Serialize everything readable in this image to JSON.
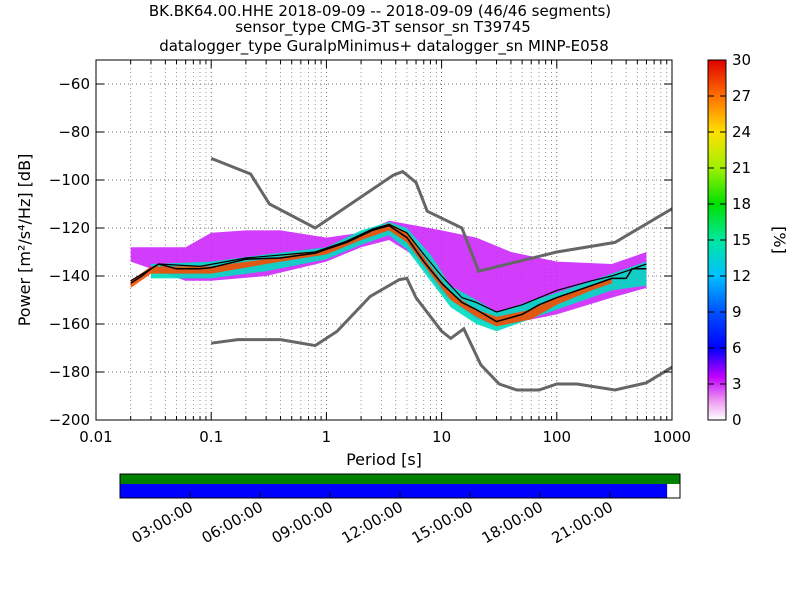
{
  "title_lines": [
    "BK.BK64.00.HHE   2018-09-09 -- 2018-09-09  (46/46 segments)",
    "sensor_type CMG-3T sensor_sn T39745",
    "datalogger_type GuralpMinimus+ datalogger_sn MINP-E058"
  ],
  "colors": {
    "noise_model": "#666666",
    "mode_line": "#000000",
    "coverage_green": "#008000",
    "coverage_blue": "#0000ff",
    "grid": "#000000"
  },
  "chart_data": {
    "type": "heatmap",
    "title": "BK.BK64.00.HHE   2018-09-09 -- 2018-09-09  (46/46 segments)",
    "xlabel": "Period [s]",
    "ylabel": "Power [m²/s⁴/Hz] [dB]",
    "xscale": "log",
    "xlim": [
      0.01,
      1000
    ],
    "ylim": [
      -200,
      -50
    ],
    "x_ticks": [
      0.01,
      0.1,
      1,
      10,
      100,
      1000
    ],
    "x_tick_labels": [
      "0.01",
      "0.1",
      "1",
      "10",
      "100",
      "1000"
    ],
    "y_ticks": [
      -200,
      -180,
      -160,
      -140,
      -120,
      -100,
      -80,
      -60
    ],
    "y_tick_labels": [
      "−200",
      "−180",
      "−160",
      "−140",
      "−120",
      "−100",
      "−80",
      "−60"
    ],
    "grid": true,
    "colorbar": {
      "label": "[%]",
      "min": 0,
      "max": 30,
      "ticks": [
        "0",
        "3",
        "6",
        "9",
        "12",
        "15",
        "18",
        "21",
        "24",
        "27",
        "30"
      ]
    },
    "nhnm": [
      [
        0.1,
        -91
      ],
      [
        0.22,
        -97.5
      ],
      [
        0.32,
        -110
      ],
      [
        0.8,
        -120
      ],
      [
        3.8,
        -98
      ],
      [
        4.6,
        -96.5
      ],
      [
        6,
        -101
      ],
      [
        7.5,
        -113
      ],
      [
        15,
        -120
      ],
      [
        21,
        -138
      ],
      [
        100,
        -130
      ],
      [
        320,
        -126
      ],
      [
        1000,
        -112
      ]
    ],
    "nlnm": [
      [
        0.1,
        -168
      ],
      [
        0.17,
        -166.5
      ],
      [
        0.4,
        -166.5
      ],
      [
        0.8,
        -169
      ],
      [
        1.24,
        -163
      ],
      [
        2.4,
        -148.5
      ],
      [
        4.3,
        -141.5
      ],
      [
        5,
        -141
      ],
      [
        6,
        -149
      ],
      [
        10,
        -163
      ],
      [
        12,
        -166
      ],
      [
        15.6,
        -162
      ],
      [
        21.9,
        -177
      ],
      [
        31.6,
        -185
      ],
      [
        45,
        -187.5
      ],
      [
        70,
        -187.5
      ],
      [
        100,
        -185
      ],
      [
        150,
        -185
      ],
      [
        320,
        -187.5
      ],
      [
        600,
        -184.5
      ],
      [
        1000,
        -178
      ]
    ],
    "mode": [
      [
        0.02,
        -143
      ],
      [
        0.025,
        -140
      ],
      [
        0.03,
        -137
      ],
      [
        0.035,
        -135
      ],
      [
        0.05,
        -137
      ],
      [
        0.08,
        -137
      ],
      [
        0.1,
        -136.5
      ],
      [
        0.2,
        -133
      ],
      [
        0.4,
        -132.5
      ],
      [
        0.8,
        -130.5
      ],
      [
        1.5,
        -126
      ],
      [
        2.5,
        -121
      ],
      [
        3.5,
        -119
      ],
      [
        5,
        -124
      ],
      [
        7,
        -134
      ],
      [
        10,
        -143
      ],
      [
        15,
        -151
      ],
      [
        20,
        -154
      ],
      [
        30,
        -159
      ],
      [
        50,
        -156
      ],
      [
        70,
        -152
      ],
      [
        100,
        -149
      ],
      [
        200,
        -144
      ],
      [
        300,
        -141
      ],
      [
        400,
        -141
      ],
      [
        450,
        -137
      ],
      [
        600,
        -137
      ]
    ],
    "mean": [
      [
        0.02,
        -142
      ],
      [
        0.035,
        -135
      ],
      [
        0.08,
        -136
      ],
      [
        0.2,
        -132.5
      ],
      [
        0.8,
        -130
      ],
      [
        1.5,
        -125.5
      ],
      [
        2.5,
        -120.5
      ],
      [
        3.5,
        -118.5
      ],
      [
        5,
        -122
      ],
      [
        7,
        -131
      ],
      [
        10,
        -140
      ],
      [
        15,
        -149
      ],
      [
        20,
        -151
      ],
      [
        30,
        -155
      ],
      [
        50,
        -152
      ],
      [
        100,
        -146
      ],
      [
        200,
        -142
      ],
      [
        300,
        -140
      ],
      [
        400,
        -138
      ],
      [
        600,
        -135
      ]
    ],
    "density_bands": [
      {
        "percent": 28,
        "upper": [
          [
            0.02,
            -142
          ],
          [
            0.03,
            -136
          ],
          [
            0.05,
            -136
          ],
          [
            0.1,
            -136
          ],
          [
            0.3,
            -133
          ],
          [
            1,
            -129
          ],
          [
            2,
            -122.5
          ],
          [
            3.5,
            -118
          ],
          [
            5,
            -122
          ],
          [
            8,
            -136
          ],
          [
            12,
            -147
          ],
          [
            20,
            -154
          ],
          [
            30,
            -157
          ],
          [
            60,
            -154
          ],
          [
            100,
            -149
          ],
          [
            200,
            -144
          ],
          [
            300,
            -141
          ]
        ],
        "lower": [
          [
            0.02,
            -145
          ],
          [
            0.03,
            -139
          ],
          [
            0.05,
            -139
          ],
          [
            0.1,
            -139
          ],
          [
            0.3,
            -135
          ],
          [
            1,
            -131
          ],
          [
            2,
            -125
          ],
          [
            3.5,
            -121
          ],
          [
            5,
            -126
          ],
          [
            8,
            -139
          ],
          [
            12,
            -150
          ],
          [
            20,
            -157
          ],
          [
            30,
            -161
          ],
          [
            60,
            -158
          ],
          [
            100,
            -152
          ],
          [
            200,
            -146
          ],
          [
            300,
            -143
          ]
        ]
      },
      {
        "percent": 14,
        "upper": [
          [
            0.03,
            -135
          ],
          [
            0.1,
            -134
          ],
          [
            0.3,
            -131
          ],
          [
            1,
            -128
          ],
          [
            2,
            -121
          ],
          [
            3.5,
            -117.5
          ],
          [
            5,
            -120
          ],
          [
            8,
            -131
          ],
          [
            12,
            -144
          ],
          [
            20,
            -150
          ],
          [
            30,
            -155
          ],
          [
            100,
            -147
          ],
          [
            300,
            -139
          ],
          [
            600,
            -134
          ]
        ],
        "lower": [
          [
            0.03,
            -141
          ],
          [
            0.1,
            -141
          ],
          [
            0.3,
            -138
          ],
          [
            1,
            -133
          ],
          [
            2,
            -127
          ],
          [
            3.5,
            -123
          ],
          [
            5,
            -129
          ],
          [
            8,
            -142
          ],
          [
            12,
            -153
          ],
          [
            20,
            -160
          ],
          [
            30,
            -163
          ],
          [
            100,
            -154
          ],
          [
            300,
            -146
          ],
          [
            600,
            -144
          ]
        ]
      },
      {
        "percent": 3,
        "upper": [
          [
            0.02,
            -128
          ],
          [
            0.06,
            -128
          ],
          [
            0.1,
            -122
          ],
          [
            0.2,
            -121
          ],
          [
            0.4,
            -121
          ],
          [
            1,
            -124
          ],
          [
            2,
            -122
          ],
          [
            3.5,
            -117
          ],
          [
            6,
            -119
          ],
          [
            10,
            -121
          ],
          [
            20,
            -124
          ],
          [
            40,
            -130
          ],
          [
            100,
            -134
          ],
          [
            300,
            -135
          ],
          [
            600,
            -130
          ]
        ],
        "lower": [
          [
            0.02,
            -134
          ],
          [
            0.06,
            -142
          ],
          [
            0.1,
            -142
          ],
          [
            0.3,
            -140
          ],
          [
            1,
            -134
          ],
          [
            2,
            -128
          ],
          [
            3.5,
            -125
          ],
          [
            6,
            -132
          ],
          [
            10,
            -147
          ],
          [
            20,
            -158
          ],
          [
            30,
            -161
          ],
          [
            100,
            -156
          ],
          [
            300,
            -149
          ],
          [
            600,
            -145
          ]
        ]
      }
    ],
    "time_axis": {
      "labels": [
        "03:00:00",
        "06:00:00",
        "09:00:00",
        "12:00:00",
        "15:00:00",
        "18:00:00",
        "21:00:00"
      ],
      "data_coverage": 1.0,
      "psd_coverage": 0.977
    }
  }
}
